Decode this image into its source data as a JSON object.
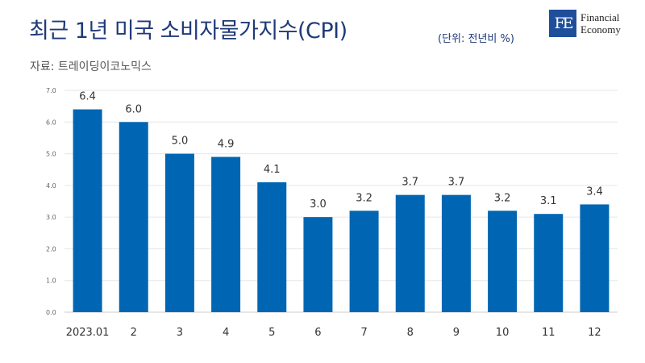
{
  "header": {
    "title": "최근 1년 미국 소비자물가지수(CPI)",
    "unit": "(단위: 전년비 %)",
    "source": "자료: 트레이딩이코노믹스"
  },
  "logo": {
    "mark": "FE",
    "line1": "Financial",
    "line2": "Economy"
  },
  "colors": {
    "bar": "#0066b3",
    "title": "#1f3a78"
  },
  "chart_data": {
    "type": "bar",
    "title": "최근 1년 미국 소비자물가지수(CPI)",
    "xlabel": "",
    "ylabel": "",
    "categories": [
      "2023.01",
      "2",
      "3",
      "4",
      "5",
      "6",
      "7",
      "8",
      "9",
      "10",
      "11",
      "12"
    ],
    "values": [
      6.4,
      6.0,
      5.0,
      4.9,
      4.1,
      3.0,
      3.2,
      3.7,
      3.7,
      3.2,
      3.1,
      3.4
    ],
    "value_labels": [
      "6.4",
      "6.0",
      "5.0",
      "4.9",
      "4.1",
      "3.0",
      "3.2",
      "3.7",
      "3.7",
      "3.2",
      "3.1",
      "3.4"
    ],
    "ylim": [
      0,
      7
    ],
    "yticks": [
      "0.0",
      "1.0",
      "2.0",
      "3.0",
      "4.0",
      "5.0",
      "6.0",
      "7.0"
    ],
    "grid": true,
    "legend": "none"
  }
}
